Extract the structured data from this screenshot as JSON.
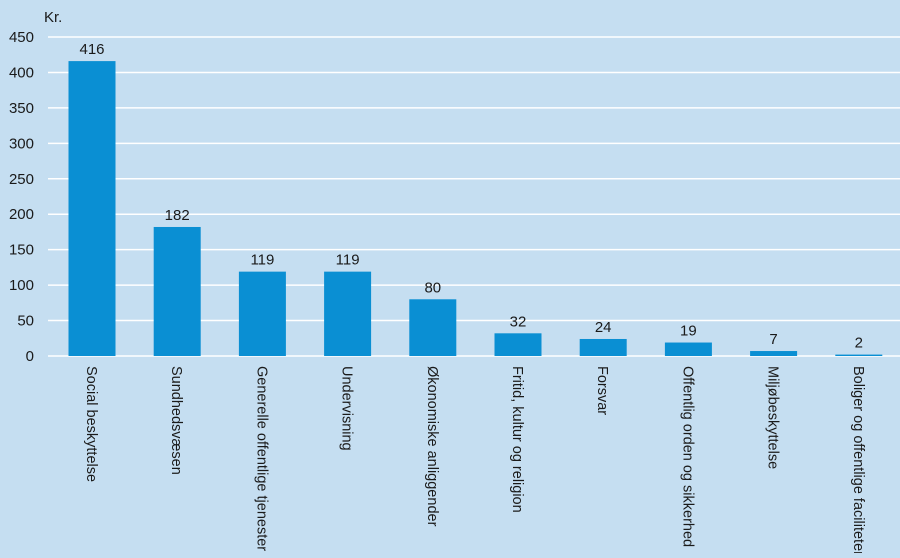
{
  "colors": {
    "background": "#c5def1",
    "bar": "#0a8fd3",
    "grid": "#ffffff",
    "text": "#1a1a1a"
  },
  "chart_data": {
    "type": "bar",
    "title": "",
    "ylabel": "Kr.",
    "xlabel": "",
    "ylim": [
      0,
      450
    ],
    "yticks": [
      0,
      50,
      100,
      150,
      200,
      250,
      300,
      350,
      400,
      450
    ],
    "grid": true,
    "categories": [
      "Social beskyttelse",
      "Sundhedsvæsen",
      "Generelle offentlige tjenester",
      "Undervisning",
      "Økonomiske anliggender",
      "Fritid, kultur og religion",
      "Forsvar",
      "Offentlig orden og sikkerhed",
      "Miljøbeskyttelse",
      "Boliger og offentlige faciliteter"
    ],
    "values": [
      416,
      182,
      119,
      119,
      80,
      32,
      24,
      19,
      7,
      2
    ]
  }
}
